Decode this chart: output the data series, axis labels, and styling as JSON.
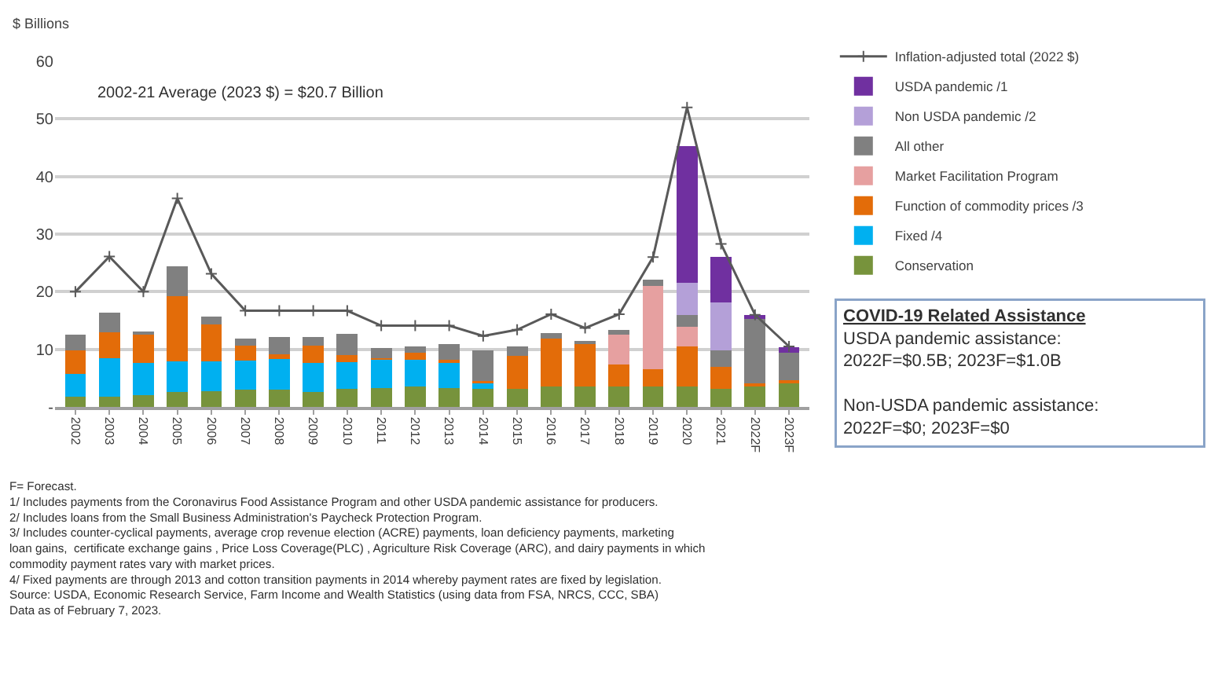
{
  "chart_data": {
    "type": "bar",
    "stacked": true,
    "ylabel": "$ Billions",
    "categories": [
      "2002",
      "2003",
      "2004",
      "2005",
      "2006",
      "2007",
      "2008",
      "2009",
      "2010",
      "2011",
      "2012",
      "2013",
      "2014",
      "2015",
      "2016",
      "2017",
      "2018",
      "2019",
      "2020",
      "2021",
      "2022F",
      "2023F"
    ],
    "series": [
      {
        "name": "Conservation",
        "color": "#77933c",
        "values": [
          1.8,
          1.8,
          2.1,
          2.6,
          2.7,
          3.0,
          3.0,
          2.6,
          3.1,
          3.3,
          3.5,
          3.3,
          3.2,
          3.2,
          3.5,
          3.5,
          3.5,
          3.5,
          3.5,
          3.2,
          3.5,
          4.1
        ]
      },
      {
        "name": "Fixed /4",
        "color": "#00b0f0",
        "values": [
          3.9,
          6.7,
          5.5,
          5.3,
          5.2,
          5.1,
          5.3,
          5.0,
          4.7,
          4.9,
          4.7,
          4.6,
          0.9,
          0,
          0,
          0,
          0,
          0,
          0,
          0,
          0,
          0
        ]
      },
      {
        "name": "Function of commodity prices /3",
        "color": "#e36c09",
        "values": [
          4.1,
          4.5,
          5.1,
          11.3,
          6.4,
          2.5,
          0.8,
          3.0,
          1.2,
          0.2,
          1.2,
          0.3,
          0.4,
          5.7,
          8.4,
          7.5,
          3.8,
          3.1,
          7.0,
          3.8,
          0.6,
          0.5
        ]
      },
      {
        "name": "Market Facilitation Program",
        "color": "#e6a0a0",
        "values": [
          0,
          0,
          0,
          0,
          0,
          0,
          0,
          0,
          0,
          0,
          0,
          0,
          0,
          0,
          0,
          0,
          5.3,
          14.4,
          3.4,
          0,
          0,
          0
        ]
      },
      {
        "name": "All other",
        "color": "#808080",
        "values": [
          2.7,
          3.3,
          0.3,
          5.2,
          1.4,
          1.3,
          3.0,
          1.6,
          3.7,
          1.8,
          1.1,
          2.7,
          5.3,
          1.6,
          0.9,
          0.4,
          0.8,
          1.1,
          2.1,
          2.8,
          11.4,
          4.8
        ]
      },
      {
        "name": "Non USDA pandemic /2",
        "color": "#b4a0d8",
        "values": [
          0,
          0,
          0,
          0,
          0,
          0,
          0,
          0,
          0,
          0,
          0,
          0,
          0,
          0,
          0,
          0,
          0,
          0,
          5.6,
          8.4,
          0,
          0
        ]
      },
      {
        "name": "USDA pandemic /1",
        "color": "#7030a0",
        "values": [
          0,
          0,
          0,
          0,
          0,
          0,
          0,
          0,
          0,
          0,
          0,
          0,
          0,
          0,
          0,
          0,
          0,
          0,
          23.7,
          7.8,
          0.5,
          1.0
        ]
      },
      {
        "name": "Inflation-adjusted total (2022 $)",
        "type": "line",
        "color": "#595959",
        "marker": "cross",
        "values": [
          20,
          26.1,
          20,
          36.2,
          23.1,
          16.7,
          16.7,
          16.7,
          16.7,
          14.1,
          14.1,
          14.1,
          12.3,
          13.4,
          16.1,
          13.7,
          16.1,
          26.0,
          52.0,
          28.3,
          16,
          10.5
        ]
      }
    ],
    "ylim": [
      0,
      60
    ],
    "yticks": [
      {
        "value": 0,
        "label": "-"
      },
      10,
      20,
      30,
      40,
      50,
      60
    ],
    "grid": "y",
    "legend": "right",
    "annotations": [
      "2002-21 Average (2023 $) = $20.7 Billion",
      "COVID-19 Related Assistance\nUSDA pandemic assistance:\n2022F=$0.5B; 2023F=$1.0B\n\nNon-USDA pandemic assistance:\n2022F=$0; 2023F=$0",
      "F= Forecast.\n1/ Includes payments from the Coronavirus Food Assistance Program and other USDA pandemic assistance for producers.\n2/ Includes loans from the Small Business Administration's Paycheck Protection Program.\n3/ Includes counter-cyclical payments, average crop revenue election (ACRE) payments, loan deficiency payments, marketing\nloan gains,  certificate exchange gains , Price Loss Coverage(PLC) , Agriculture Risk Coverage (ARC), and dairy payments in which\ncommodity payment rates vary with market prices.\n4/ Fixed payments are through 2013 and cotton transition payments in 2014 whereby payment rates are fixed by legislation.\nSource: USDA, Economic Research Service, Farm Income and Wealth Statistics (using data from FSA, NRCS, CCC, SBA)\nData as of February 7, 2023."
    ]
  }
}
